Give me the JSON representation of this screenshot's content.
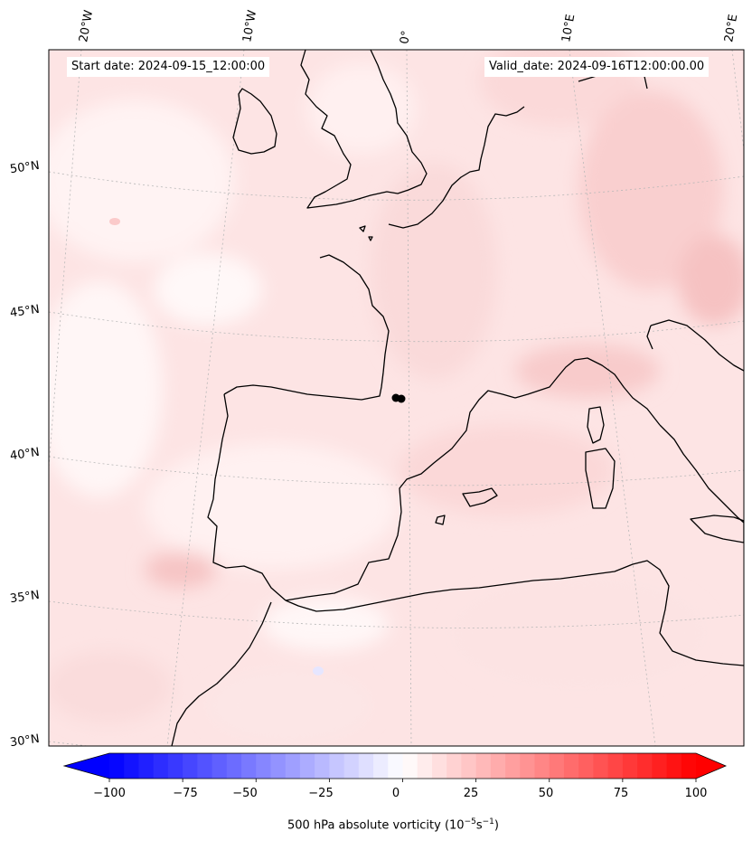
{
  "header": {
    "start_date": "Start date: 2024-09-15_12:00:00",
    "valid_date": "Valid_date: 2024-09-16T12:00:00.00"
  },
  "map": {
    "region": "Western Europe / Iberian Peninsula",
    "projection": "conic",
    "gridline_style": "dotted gray",
    "lon_labels": [
      "20°W",
      "10°W",
      "0°",
      "10°E",
      "20°E"
    ],
    "lat_labels": [
      "50°N",
      "45°N",
      "40°N",
      "35°N",
      "30°N"
    ],
    "field": "500 hPa absolute vorticity",
    "field_range_shown": "mostly weak positive values (pale red), small weak negative patches",
    "marker": {
      "symbol": "black dots",
      "count": 2,
      "location": "southwest France near 0° / 43°N"
    }
  },
  "colorbar": {
    "ticks": [
      "−100",
      "−75",
      "−50",
      "−25",
      "0",
      "25",
      "50",
      "75",
      "100"
    ],
    "label_prefix": "500 hPa absolute vorticity (10",
    "label_exp1": "−5",
    "label_mid": "s",
    "label_exp2": "−1",
    "label_suffix": ")",
    "colormap": "bwr",
    "min_color": "#0000ff",
    "mid_color": "#ffffff",
    "max_color": "#ff0000",
    "extend": "both"
  }
}
